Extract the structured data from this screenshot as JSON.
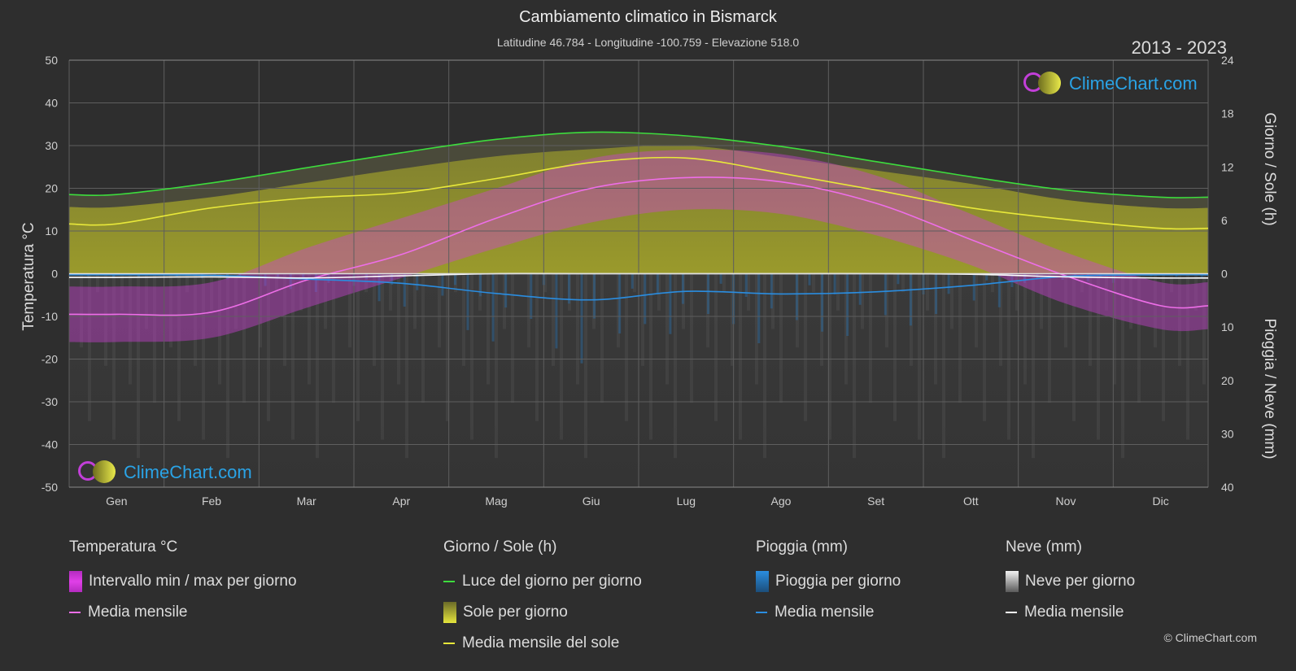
{
  "header": {
    "title": "Cambiamento climatico in Bismarck",
    "subtitle": "Latitudine 46.784 - Longitudine -100.759 - Elevazione 518.0",
    "year_range": "2013 - 2023"
  },
  "brand": {
    "logo_text": "ClimeChart.com",
    "copyright": "© ClimeChart.com"
  },
  "axes": {
    "left_title": "Temperatura °C",
    "right_top_title": "Giorno / Sole (h)",
    "right_bottom_title": "Pioggia / Neve (mm)"
  },
  "legend": {
    "temperature": {
      "header": "Temperatura °C",
      "items": [
        {
          "label": "Intervallo min / max per giorno",
          "swatch": "rect",
          "color": "#e040e8"
        },
        {
          "label": "Media mensile",
          "swatch": "line",
          "color": "#ee6ee8"
        }
      ]
    },
    "daylight": {
      "header": "Giorno / Sole (h)",
      "items": [
        {
          "label": "Luce del giorno per giorno",
          "swatch": "line",
          "color": "#3ddc3d"
        },
        {
          "label": "Sole per giorno",
          "swatch": "rect",
          "color": "#d8d83a"
        },
        {
          "label": "Media mensile del sole",
          "swatch": "line",
          "color": "#e8e83a"
        }
      ]
    },
    "rain": {
      "header": "Pioggia (mm)",
      "items": [
        {
          "label": "Pioggia per giorno",
          "swatch": "rect",
          "color": "#2a8de0"
        },
        {
          "label": "Media mensile",
          "swatch": "line",
          "color": "#2a8de0"
        }
      ]
    },
    "snow": {
      "header": "Neve (mm)",
      "items": [
        {
          "label": "Neve per giorno",
          "swatch": "rect",
          "color": "#e0e0e0"
        },
        {
          "label": "Media mensile",
          "swatch": "line",
          "color": "#ffffff"
        }
      ]
    }
  },
  "chart_data": {
    "type": "line",
    "categories": [
      "Gen",
      "Feb",
      "Mar",
      "Apr",
      "Mag",
      "Giu",
      "Lug",
      "Ago",
      "Set",
      "Ott",
      "Nov",
      "Dic"
    ],
    "y_left": {
      "label": "Temperatura °C",
      "range": [
        -50,
        50
      ],
      "ticks": [
        50,
        40,
        30,
        20,
        10,
        0,
        -10,
        -20,
        -30,
        -40,
        -50
      ]
    },
    "y_right_top": {
      "label": "Giorno / Sole (h)",
      "range": [
        0,
        24
      ],
      "ticks": [
        24,
        18,
        12,
        6,
        0
      ]
    },
    "y_right_bottom": {
      "label": "Pioggia / Neve (mm)",
      "range": [
        0,
        40
      ],
      "ticks": [
        0,
        10,
        20,
        30,
        40
      ]
    },
    "grid": true,
    "series": [
      {
        "name": "Luce del giorno per giorno",
        "axis": "right_top",
        "color": "#3ddc3d",
        "values": [
          8.9,
          10.2,
          11.9,
          13.6,
          15.1,
          15.9,
          15.5,
          14.3,
          12.6,
          10.9,
          9.4,
          8.6
        ]
      },
      {
        "name": "Media mensile del sole",
        "axis": "right_top",
        "color": "#e8e83a",
        "values": [
          5.6,
          7.4,
          8.5,
          9.1,
          10.7,
          12.5,
          13.0,
          11.3,
          9.4,
          7.4,
          6.1,
          5.1
        ]
      },
      {
        "name": "Media mensile",
        "axis": "left",
        "color": "#ee6ee8",
        "values": [
          -9.5,
          -9.0,
          -1.5,
          4.5,
          13.0,
          20.0,
          22.5,
          21.5,
          16.5,
          8.0,
          -0.5,
          -7.5
        ]
      },
      {
        "name": "Pioggia Media mensile",
        "axis": "right_bottom",
        "color": "#2a8de0",
        "values": [
          0.2,
          0.3,
          1.0,
          1.8,
          3.7,
          4.9,
          3.3,
          3.8,
          3.4,
          2.2,
          0.5,
          0.2
        ]
      },
      {
        "name": "Neve Media mensile",
        "axis": "right_bottom",
        "color": "#ffffff",
        "values": [
          0.7,
          0.6,
          0.8,
          0.4,
          0.0,
          0.0,
          0.0,
          0.0,
          0.0,
          0.1,
          0.6,
          0.8
        ]
      }
    ],
    "temperature_band": {
      "name": "Intervallo min / max per giorno",
      "max": [
        -3,
        -2,
        6,
        13,
        20,
        27,
        29,
        28,
        23,
        14,
        5,
        -2
      ],
      "min": [
        -16,
        -15,
        -8,
        -1,
        6,
        12,
        15,
        14,
        9,
        2,
        -7,
        -13
      ]
    },
    "sunshine_band": {
      "name": "Sole per giorno",
      "values": [
        7.5,
        8.6,
        10.2,
        11.8,
        13.2,
        14.0,
        14.4,
        13.1,
        11.6,
        10.1,
        8.3,
        7.4
      ]
    }
  }
}
